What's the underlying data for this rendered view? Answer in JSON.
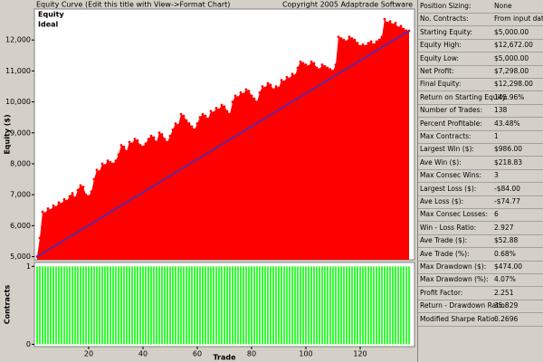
{
  "header": {
    "title": "Equity Curve (Edit this title with View->Format Chart)",
    "copyright": "Copyright 2005 Adaptrade Software"
  },
  "chart_data": [
    {
      "type": "area",
      "ylabel": "Equity ($)",
      "x": [
        1,
        2,
        3,
        4,
        5,
        6,
        7,
        8,
        9,
        10,
        11,
        12,
        13,
        14,
        15,
        16,
        17,
        18,
        19,
        20,
        21,
        22,
        23,
        24,
        25,
        26,
        27,
        28,
        29,
        30,
        31,
        32,
        33,
        34,
        35,
        36,
        37,
        38,
        39,
        40,
        41,
        42,
        43,
        44,
        45,
        46,
        47,
        48,
        49,
        50,
        51,
        52,
        53,
        54,
        55,
        56,
        57,
        58,
        59,
        60,
        61,
        62,
        63,
        64,
        65,
        66,
        67,
        68,
        69,
        70,
        71,
        72,
        73,
        74,
        75,
        76,
        77,
        78,
        79,
        80,
        81,
        82,
        83,
        84,
        85,
        86,
        87,
        88,
        89,
        90,
        91,
        92,
        93,
        94,
        95,
        96,
        97,
        98,
        99,
        100,
        101,
        102,
        103,
        104,
        105,
        106,
        107,
        108,
        109,
        110,
        111,
        112,
        113,
        114,
        115,
        116,
        117,
        118,
        119,
        120,
        121,
        122,
        123,
        124,
        125,
        126,
        127,
        128,
        129,
        130,
        131,
        132,
        133,
        134,
        135,
        136,
        137,
        138
      ],
      "series": [
        {
          "name": "Equity",
          "color": "#ff0000",
          "type": "area",
          "values": [
            5000,
            5600,
            6450,
            6400,
            6550,
            6500,
            6650,
            6600,
            6750,
            6700,
            6850,
            6800,
            6950,
            7050,
            6900,
            7150,
            7300,
            7250,
            7000,
            6950,
            7100,
            7500,
            7800,
            7750,
            8000,
            7950,
            8100,
            8050,
            8000,
            8100,
            8300,
            8600,
            8550,
            8400,
            8700,
            8650,
            8800,
            8750,
            8600,
            8550,
            8650,
            8800,
            8900,
            8850,
            8700,
            9000,
            8950,
            8800,
            8700,
            8900,
            9100,
            9300,
            9250,
            9600,
            9550,
            9400,
            9300,
            9200,
            9100,
            9300,
            9500,
            9600,
            9550,
            9450,
            9700,
            9650,
            9800,
            9750,
            9900,
            9850,
            9700,
            9600,
            10000,
            10200,
            10150,
            10300,
            10250,
            10400,
            10350,
            10200,
            10100,
            10000,
            10300,
            10500,
            10450,
            10600,
            10550,
            10400,
            10500,
            10450,
            10700,
            10650,
            10800,
            10750,
            10900,
            10850,
            11100,
            11300,
            11250,
            11200,
            11150,
            11300,
            11250,
            11100,
            11050,
            11200,
            11150,
            11100,
            11050,
            11000,
            11200,
            12100,
            12050,
            12000,
            11950,
            12100,
            12050,
            12000,
            11900,
            11800,
            11850,
            11800,
            11900,
            11950,
            11850,
            11950,
            12000,
            12100,
            12672,
            12550,
            12600,
            12500,
            12550,
            12400,
            12450,
            12350,
            12300,
            12298
          ]
        },
        {
          "name": "Ideal",
          "color": "#3333cc",
          "type": "line",
          "x": [
            1,
            138
          ],
          "values": [
            5000,
            12298
          ]
        }
      ],
      "xlim": [
        0,
        140
      ],
      "ylim": [
        4900,
        13000
      ],
      "yticks": [
        {
          "value": 5000,
          "label": "5,000"
        },
        {
          "value": 6000,
          "label": "6,000"
        },
        {
          "value": 7000,
          "label": "7,000"
        },
        {
          "value": 8000,
          "label": "8,000"
        },
        {
          "value": 9000,
          "label": "9,000"
        },
        {
          "value": 10000,
          "label": "10,000"
        },
        {
          "value": 11000,
          "label": "11,000"
        },
        {
          "value": 12000,
          "label": "12,000"
        }
      ]
    },
    {
      "type": "bar",
      "ylabel": "Contracts",
      "xlabel": "Trade",
      "color": "#00ff00",
      "x": [
        1,
        2,
        3,
        4,
        5,
        6,
        7,
        8,
        9,
        10,
        11,
        12,
        13,
        14,
        15,
        16,
        17,
        18,
        19,
        20,
        21,
        22,
        23,
        24,
        25,
        26,
        27,
        28,
        29,
        30,
        31,
        32,
        33,
        34,
        35,
        36,
        37,
        38,
        39,
        40,
        41,
        42,
        43,
        44,
        45,
        46,
        47,
        48,
        49,
        50,
        51,
        52,
        53,
        54,
        55,
        56,
        57,
        58,
        59,
        60,
        61,
        62,
        63,
        64,
        65,
        66,
        67,
        68,
        69,
        70,
        71,
        72,
        73,
        74,
        75,
        76,
        77,
        78,
        79,
        80,
        81,
        82,
        83,
        84,
        85,
        86,
        87,
        88,
        89,
        90,
        91,
        92,
        93,
        94,
        95,
        96,
        97,
        98,
        99,
        100,
        101,
        102,
        103,
        104,
        105,
        106,
        107,
        108,
        109,
        110,
        111,
        112,
        113,
        114,
        115,
        116,
        117,
        118,
        119,
        120,
        121,
        122,
        123,
        124,
        125,
        126,
        127,
        128,
        129,
        130,
        131,
        132,
        133,
        134,
        135,
        136,
        137,
        138
      ],
      "values": [
        1,
        1,
        1,
        1,
        1,
        1,
        1,
        1,
        1,
        1,
        1,
        1,
        1,
        1,
        1,
        1,
        1,
        1,
        1,
        1,
        1,
        1,
        1,
        1,
        1,
        1,
        1,
        1,
        1,
        1,
        1,
        1,
        1,
        1,
        1,
        1,
        1,
        1,
        1,
        1,
        1,
        1,
        1,
        1,
        1,
        1,
        1,
        1,
        1,
        1,
        1,
        1,
        1,
        1,
        1,
        1,
        1,
        1,
        1,
        1,
        1,
        1,
        1,
        1,
        1,
        1,
        1,
        1,
        1,
        1,
        1,
        1,
        1,
        1,
        1,
        1,
        1,
        1,
        1,
        1,
        1,
        1,
        1,
        1,
        1,
        1,
        1,
        1,
        1,
        1,
        1,
        1,
        1,
        1,
        1,
        1,
        1,
        1,
        1,
        1,
        1,
        1,
        1,
        1,
        1,
        1,
        1,
        1,
        1,
        1,
        1,
        1,
        1,
        1,
        1,
        1,
        1,
        1,
        1,
        1,
        1,
        1,
        1,
        1,
        1,
        1,
        1,
        1,
        1,
        1,
        1,
        1,
        1,
        1,
        1,
        1,
        1,
        1
      ],
      "xlim": [
        0,
        140
      ],
      "ylim": [
        -0.03,
        1.05
      ],
      "yticks": [
        0,
        1
      ],
      "xticks": [
        20,
        40,
        60,
        80,
        100,
        120
      ]
    }
  ],
  "stats": {
    "rows": [
      [
        "Position Sizing:",
        "None"
      ],
      [
        "No. Contracts:",
        "From input data"
      ],
      [
        "Starting Equity:",
        "$5,000.00"
      ],
      [
        "Equity High:",
        "$12,672.00"
      ],
      [
        "Equity Low:",
        "$5,000.00"
      ],
      [
        "Net Profit:",
        "$7,298.00"
      ],
      [
        "Final Equity:",
        "$12,298.00"
      ],
      [
        "Return on Starting Equity:",
        "145.96%"
      ],
      [
        "Number of Trades:",
        "138"
      ],
      [
        "Percent Profitable:",
        "43.48%"
      ],
      [
        "Max Contracts:",
        "1"
      ],
      [
        "Largest Win ($):",
        "$986.00"
      ],
      [
        "Ave Win ($):",
        "$218.83"
      ],
      [
        "Max Consec Wins:",
        "3"
      ],
      [
        "Largest Loss ($):",
        "-$84.00"
      ],
      [
        "Ave Loss ($):",
        "-$74.77"
      ],
      [
        "Max Consec Losses:",
        "6"
      ],
      [
        "Win - Loss Ratio:",
        "2.927"
      ],
      [
        "Ave Trade ($):",
        "$52.88"
      ],
      [
        "Ave Trade (%):",
        "0.68%"
      ],
      [
        "Max Drawdown ($):",
        "$474.00"
      ],
      [
        "Max Drawdown (%):",
        "4.07%"
      ],
      [
        "Profit Factor:",
        "2.251"
      ],
      [
        "Return - Drawdown Ratio:",
        "35.829"
      ],
      [
        "Modified Sharpe Ratio:",
        "0.2696"
      ]
    ]
  }
}
